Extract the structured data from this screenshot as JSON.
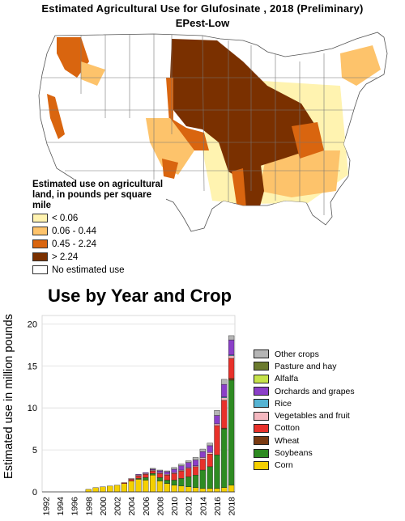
{
  "map": {
    "title": "Estimated Agricultural Use for Glufosinate , 2018 (Preliminary)",
    "subtitle": "EPest-Low",
    "legend_title": "Estimated use on agricultural land, in pounds per square mile",
    "legend": [
      {
        "label": "< 0.06",
        "color": "#FFF3B0"
      },
      {
        "label": "0.06 - 0.44",
        "color": "#FDC36B"
      },
      {
        "label": "0.45 - 2.24",
        "color": "#D9650F"
      },
      {
        "label": "> 2.24",
        "color": "#7A3000"
      },
      {
        "label": "No estimated use",
        "color": "#FFFFFF"
      }
    ]
  },
  "chart_data": {
    "type": "bar",
    "stacked": true,
    "title": "Use by Year and Crop",
    "xlabel": "",
    "ylabel": "Estimated use in million pounds",
    "ylim": [
      0,
      21
    ],
    "yticks": [
      "0",
      "5",
      "10",
      "15",
      "20"
    ],
    "grid": true,
    "legend_position": "right",
    "categories": [
      "1992",
      "1993",
      "1994",
      "1995",
      "1996",
      "1997",
      "1998",
      "1999",
      "2000",
      "2001",
      "2002",
      "2003",
      "2004",
      "2005",
      "2006",
      "2007",
      "2008",
      "2009",
      "2010",
      "2011",
      "2012",
      "2013",
      "2014",
      "2015",
      "2016",
      "2017",
      "2018"
    ],
    "xtick_labels": [
      "1992",
      "1994",
      "1996",
      "1998",
      "2000",
      "2002",
      "2004",
      "2006",
      "2008",
      "2010",
      "2012",
      "2014",
      "2016",
      "2018"
    ],
    "series": [
      {
        "name": "Corn",
        "color": "#F5D000",
        "values": [
          0,
          0,
          0,
          0,
          0,
          0,
          0.3,
          0.5,
          0.6,
          0.7,
          0.8,
          1.0,
          1.3,
          1.5,
          1.4,
          2.0,
          1.3,
          1.0,
          0.8,
          0.7,
          0.6,
          0.5,
          0.4,
          0.4,
          0.4,
          0.5,
          0.8
        ]
      },
      {
        "name": "Soybeans",
        "color": "#2E8B22",
        "values": [
          0,
          0,
          0,
          0,
          0,
          0,
          0,
          0,
          0,
          0,
          0,
          0,
          0,
          0.1,
          0.3,
          0.2,
          0.4,
          0.4,
          0.6,
          0.9,
          1.2,
          1.5,
          2.2,
          2.6,
          4.0,
          7.0,
          12.5
        ]
      },
      {
        "name": "Wheat",
        "color": "#7A3B12",
        "values": [
          0,
          0,
          0,
          0,
          0,
          0,
          0,
          0,
          0,
          0,
          0,
          0,
          0,
          0,
          0,
          0,
          0,
          0,
          0,
          0,
          0,
          0,
          0,
          0,
          0,
          0.1,
          0.2
        ]
      },
      {
        "name": "Cotton",
        "color": "#E8312A",
        "values": [
          0,
          0,
          0,
          0,
          0,
          0,
          0,
          0,
          0,
          0,
          0,
          0.1,
          0.2,
          0.3,
          0.4,
          0.3,
          0.5,
          0.6,
          0.8,
          0.9,
          1.0,
          1.0,
          1.3,
          1.5,
          3.5,
          3.3,
          2.4
        ]
      },
      {
        "name": "Vegetables and fruit",
        "color": "#F4B8C0",
        "values": [
          0,
          0,
          0,
          0,
          0,
          0,
          0,
          0,
          0,
          0,
          0,
          0,
          0.1,
          0.1,
          0.1,
          0.1,
          0.1,
          0.1,
          0.1,
          0.1,
          0.1,
          0.1,
          0.2,
          0.2,
          0.2,
          0.3,
          0.3
        ]
      },
      {
        "name": "Rice",
        "color": "#56B4D3",
        "values": [
          0,
          0,
          0,
          0,
          0,
          0,
          0,
          0,
          0,
          0,
          0,
          0,
          0,
          0,
          0,
          0,
          0,
          0,
          0,
          0,
          0,
          0,
          0,
          0,
          0,
          0.1,
          0.1
        ]
      },
      {
        "name": "Orchards and grapes",
        "color": "#8B3FC8",
        "values": [
          0,
          0,
          0,
          0,
          0,
          0,
          0,
          0,
          0,
          0,
          0,
          0,
          0,
          0.1,
          0.1,
          0.1,
          0.2,
          0.3,
          0.4,
          0.5,
          0.6,
          0.7,
          0.7,
          0.8,
          1.0,
          1.5,
          1.8
        ]
      },
      {
        "name": "Alfalfa",
        "color": "#C6E34A",
        "values": [
          0,
          0,
          0,
          0,
          0,
          0,
          0,
          0,
          0,
          0,
          0,
          0,
          0,
          0,
          0,
          0,
          0,
          0,
          0,
          0,
          0,
          0,
          0,
          0,
          0,
          0,
          0
        ]
      },
      {
        "name": "Pasture and hay",
        "color": "#6B7A2E",
        "values": [
          0,
          0,
          0,
          0,
          0,
          0,
          0,
          0,
          0,
          0,
          0,
          0,
          0,
          0,
          0,
          0,
          0,
          0,
          0,
          0,
          0,
          0,
          0,
          0,
          0,
          0,
          0
        ]
      },
      {
        "name": "Other crops",
        "color": "#B5B5B5",
        "values": [
          0,
          0,
          0,
          0,
          0,
          0,
          0,
          0,
          0,
          0,
          0,
          0,
          0,
          0,
          0,
          0.1,
          0.1,
          0.1,
          0.2,
          0.2,
          0.2,
          0.3,
          0.3,
          0.3,
          0.6,
          0.6,
          0.5
        ]
      }
    ]
  }
}
